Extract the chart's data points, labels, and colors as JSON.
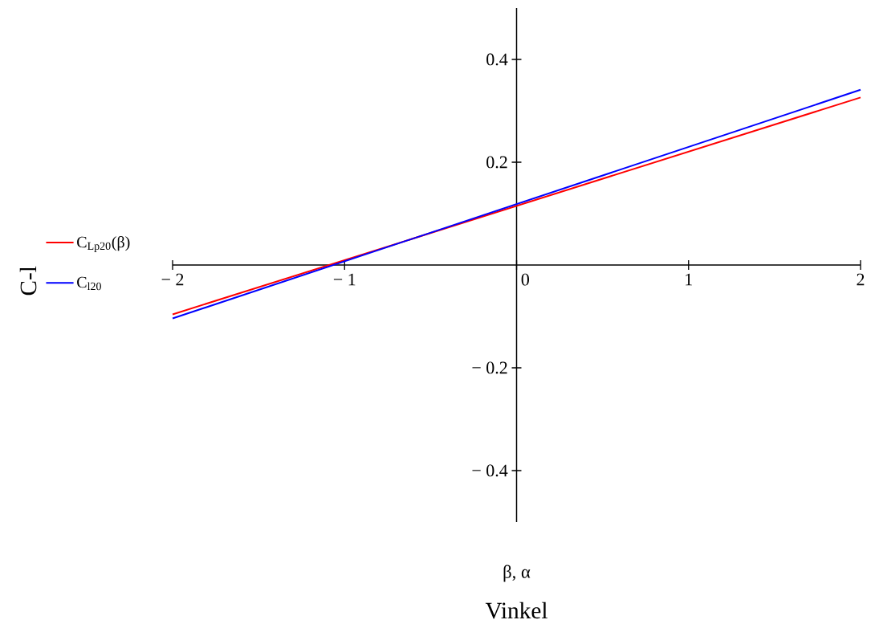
{
  "chart_data": {
    "type": "line",
    "xlabel": "Vinkel",
    "annotations": [
      "β, α",
      "C-l"
    ],
    "x": [
      -2,
      2
    ],
    "series": [
      {
        "name": "C$_{Lp20}$(β)",
        "color": "#ff0000",
        "values": [
          -0.096,
          0.326
        ]
      },
      {
        "name": "C$_{l20}$",
        "color": "#0000ff",
        "values": [
          -0.104,
          0.341
        ]
      }
    ],
    "xlim": [
      -2,
      2
    ],
    "ylim": [
      -0.5,
      0.5
    ],
    "xticks": [
      {
        "value": -2,
        "label": "− 2"
      },
      {
        "value": -1,
        "label": "− 1"
      },
      0,
      1,
      2
    ],
    "yticks": [
      {
        "value": -0.4,
        "label": "− 0.4"
      },
      {
        "value": -0.2,
        "label": "− 0.2"
      },
      0.2,
      0.4
    ],
    "legend": "left",
    "line_style": "solid"
  }
}
